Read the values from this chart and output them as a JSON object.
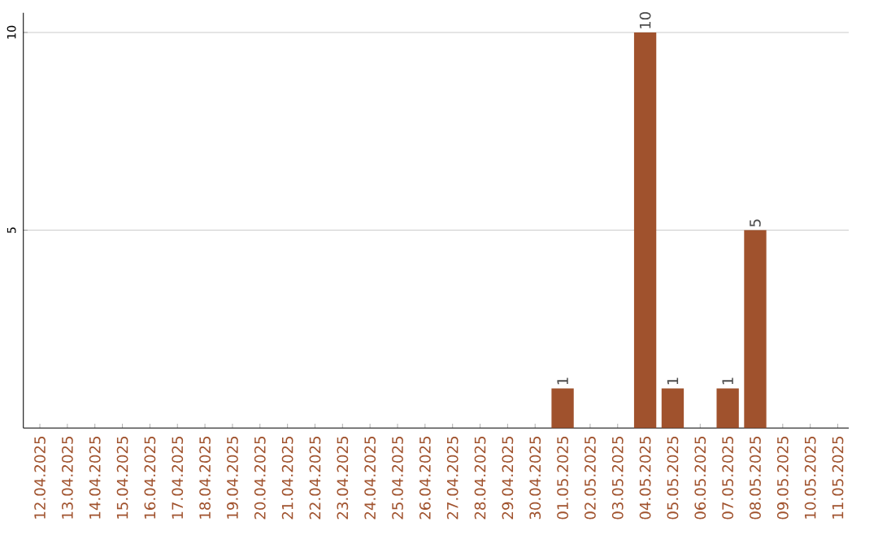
{
  "chart_data": {
    "type": "bar",
    "categories": [
      "12.04.2025",
      "13.04.2025",
      "14.04.2025",
      "15.04.2025",
      "16.04.2025",
      "17.04.2025",
      "18.04.2025",
      "19.04.2025",
      "20.04.2025",
      "21.04.2025",
      "22.04.2025",
      "23.04.2025",
      "24.04.2025",
      "25.04.2025",
      "26.04.2025",
      "27.04.2025",
      "28.04.2025",
      "29.04.2025",
      "30.04.2025",
      "01.05.2025",
      "02.05.2025",
      "03.05.2025",
      "04.05.2025",
      "05.05.2025",
      "06.05.2025",
      "07.05.2025",
      "08.05.2025",
      "09.05.2025",
      "10.05.2025",
      "11.05.2025"
    ],
    "values": [
      0,
      0,
      0,
      0,
      0,
      0,
      0,
      0,
      0,
      0,
      0,
      0,
      0,
      0,
      0,
      0,
      0,
      0,
      0,
      1,
      0,
      0,
      10,
      1,
      0,
      1,
      5,
      0,
      0,
      0
    ],
    "value_labels": [
      null,
      null,
      null,
      null,
      null,
      null,
      null,
      null,
      null,
      null,
      null,
      null,
      null,
      null,
      null,
      null,
      null,
      null,
      null,
      "1",
      null,
      null,
      "10",
      "1",
      null,
      "1",
      "5",
      null,
      null,
      null
    ],
    "color": "#a0522d",
    "ylim": [
      0,
      10.5
    ],
    "yticks": [
      5,
      10
    ],
    "grid": "y"
  }
}
